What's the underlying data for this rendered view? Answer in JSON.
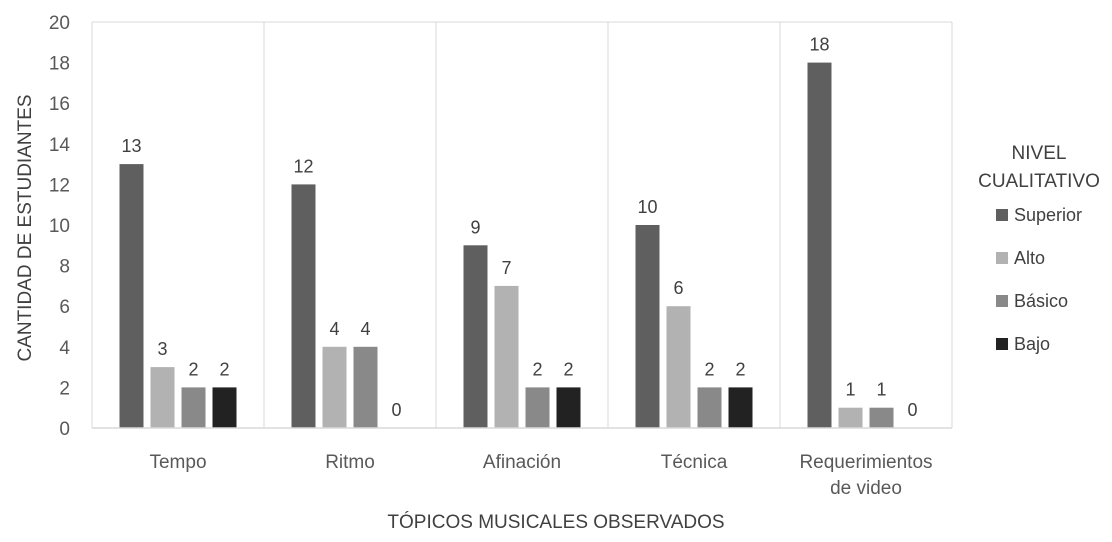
{
  "chart_data": {
    "type": "bar",
    "title": "",
    "xlabel": "TÓPICOS MUSICALES OBSERVADOS",
    "ylabel": "CANTIDAD DE ESTUDIANTES",
    "ylim": [
      0,
      20
    ],
    "yticks": [
      0,
      2,
      4,
      6,
      8,
      10,
      12,
      14,
      16,
      18,
      20
    ],
    "grid": "vertical separators between categories",
    "legend_position": "right",
    "legend_title": [
      "NIVEL",
      "CUALITATIVO"
    ],
    "categories": [
      [
        "Tempo"
      ],
      [
        "Ritmo"
      ],
      [
        "Afinación"
      ],
      [
        "Técnica"
      ],
      [
        "Requerimientos",
        "de video"
      ]
    ],
    "series": [
      {
        "name": "Superior",
        "color": "#5f5f5f",
        "values": [
          13,
          12,
          9,
          10,
          18
        ]
      },
      {
        "name": "Alto",
        "color": "#b2b2b2",
        "values": [
          3,
          4,
          7,
          6,
          1
        ]
      },
      {
        "name": "Básico",
        "color": "#898989",
        "values": [
          2,
          4,
          2,
          2,
          1
        ]
      },
      {
        "name": "Bajo",
        "color": "#222222",
        "values": [
          2,
          0,
          2,
          2,
          0
        ]
      }
    ],
    "data_labels": true
  }
}
